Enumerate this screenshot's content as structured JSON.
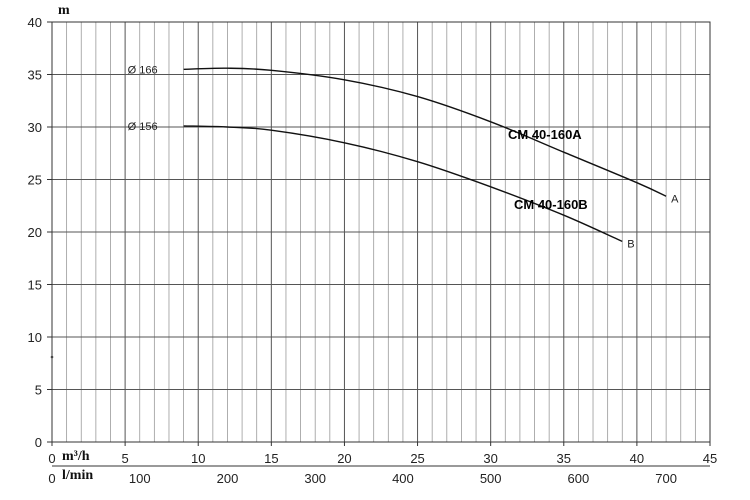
{
  "chart_data": {
    "type": "line",
    "ylabel": "m",
    "x_unit_top": "m³/h",
    "x_unit_bottom": "l/min",
    "xlim": [
      0,
      45
    ],
    "ylim": [
      0,
      40
    ],
    "x_ticks": [
      "0",
      "5",
      "10",
      "15",
      "20",
      "25",
      "30",
      "35",
      "40",
      "45"
    ],
    "y_ticks": [
      "0",
      "5",
      "10",
      "15",
      "20",
      "25",
      "30",
      "35",
      "40"
    ],
    "lmin_ticks": [
      "0",
      "100",
      "200",
      "300",
      "400",
      "500",
      "600",
      "700"
    ],
    "grid": true,
    "series": [
      {
        "name": "CM 40-160A",
        "end_label": "A",
        "impeller_label": "Ø 166",
        "x": [
          9,
          12,
          15,
          20,
          25,
          30,
          35,
          40,
          42
        ],
        "y": [
          35.5,
          35.6,
          35.4,
          34.5,
          32.9,
          30.5,
          27.6,
          24.7,
          23.4
        ]
      },
      {
        "name": "CM 40-160B",
        "end_label": "B",
        "impeller_label": "Ø 156",
        "x": [
          9,
          12,
          15,
          20,
          25,
          30,
          35,
          39
        ],
        "y": [
          30.1,
          30.0,
          29.7,
          28.5,
          26.7,
          24.3,
          21.6,
          19.1
        ]
      }
    ]
  }
}
